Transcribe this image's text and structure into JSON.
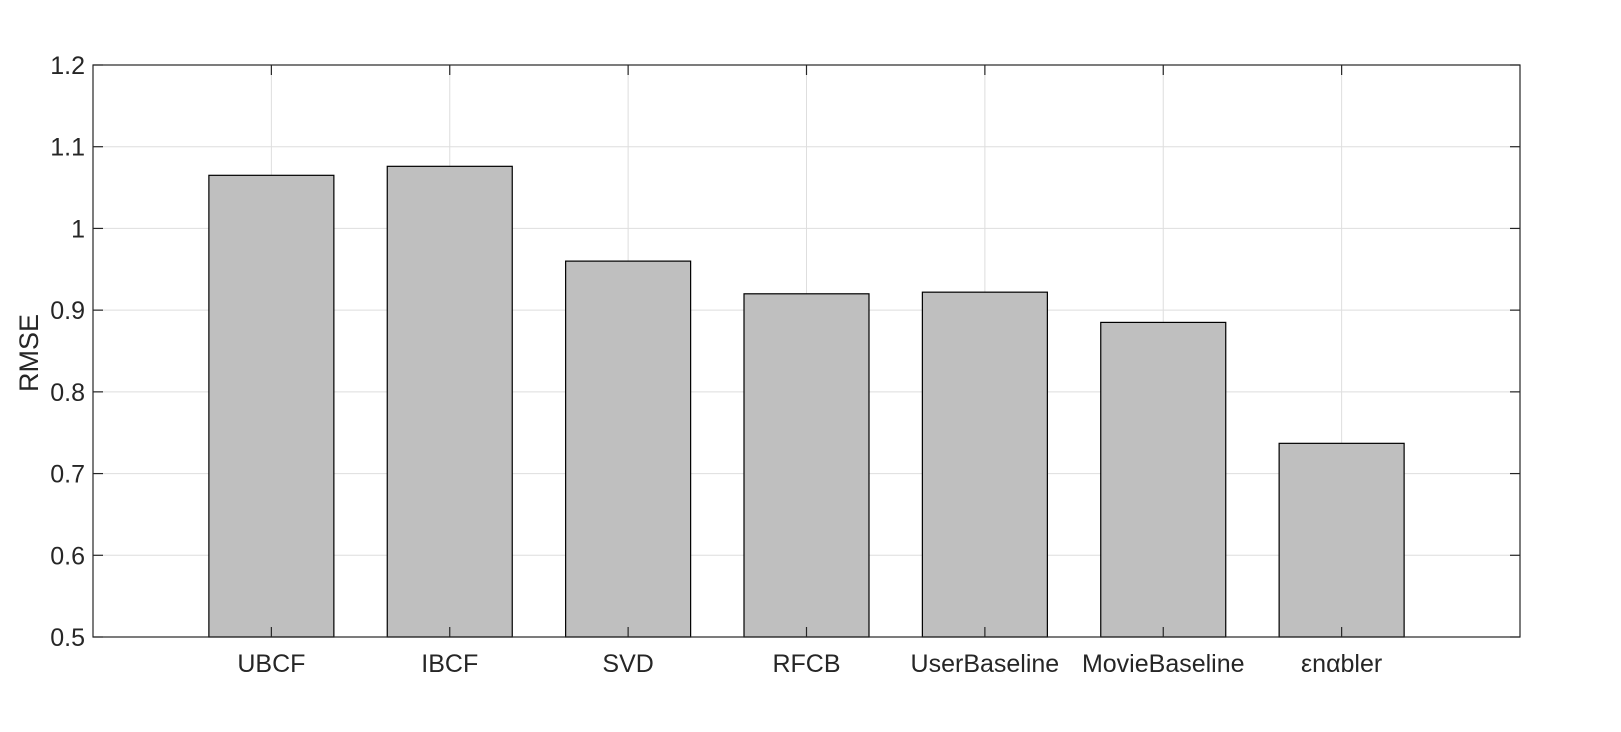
{
  "chart_data": {
    "type": "bar",
    "categories": [
      "UBCF",
      "IBCF",
      "SVD",
      "RFCB",
      "UserBaseline",
      "MovieBaseline",
      "εnαbler"
    ],
    "values": [
      1.065,
      1.076,
      0.96,
      0.92,
      0.922,
      0.885,
      0.737
    ],
    "ylabel": "RMSE",
    "ylim": [
      0.5,
      1.2
    ],
    "yticks": [
      "0.5",
      "0.6",
      "0.7",
      "0.8",
      "0.9",
      "1",
      "1.1",
      "1.2"
    ],
    "grid": true,
    "colors": {
      "bar_fill": "#bfbfbf",
      "bar_stroke": "#000000",
      "grid": "#dedede",
      "axis": "#262626"
    }
  }
}
